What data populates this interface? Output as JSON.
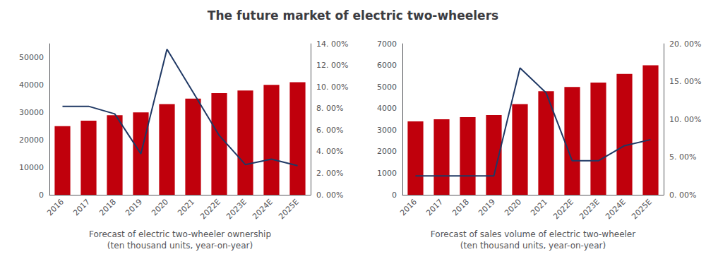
{
  "title": "The future market of electric two-wheelers",
  "chart_data": [
    {
      "type": "bar",
      "xlabel": "Forecast of electric two-wheeler ownership\n(ten thousand units, year-on-year)",
      "categories": [
        "2016",
        "2017",
        "2018",
        "2019",
        "2020",
        "2021",
        "2022E",
        "2023E",
        "2024E",
        "2025E"
      ],
      "series": [
        {
          "type": "bar",
          "color": "#C0000C",
          "values": [
            25000,
            27000,
            29000,
            30000,
            33000,
            35000,
            37000,
            38000,
            40000,
            41000
          ]
        },
        {
          "type": "line",
          "axis": "y2",
          "color": "#1F3864",
          "values": [
            0.082,
            0.082,
            0.075,
            0.038,
            0.135,
            0.095,
            0.055,
            0.028,
            0.033,
            0.027
          ]
        }
      ],
      "ylim": [
        0,
        55000
      ],
      "yticks": [
        0,
        10000,
        20000,
        30000,
        40000,
        50000
      ],
      "y2lim": [
        0,
        0.14
      ],
      "y2ticks": [
        {
          "value": 0.0,
          "label": "0. 00%"
        },
        {
          "value": 0.02,
          "label": "2. 00%"
        },
        {
          "value": 0.04,
          "label": "4. 00%"
        },
        {
          "value": 0.06,
          "label": "6. 00%"
        },
        {
          "value": 0.08,
          "label": "8. 00%"
        },
        {
          "value": 0.1,
          "label": "10. 00%"
        },
        {
          "value": 0.12,
          "label": "12. 00%"
        },
        {
          "value": 0.14,
          "label": "14. 00%"
        }
      ],
      "grid": false
    },
    {
      "type": "bar",
      "xlabel": "Forecast of sales volume of electric two-wheeler\n(ten thousand units, year-on-year)",
      "categories": [
        "2016",
        "2017",
        "2018",
        "2019",
        "2020",
        "2021",
        "2022E",
        "2023E",
        "2024E",
        "2025E"
      ],
      "series": [
        {
          "type": "bar",
          "color": "#C0000C",
          "values": [
            3400,
            3500,
            3600,
            3700,
            4200,
            4800,
            5000,
            5200,
            5600,
            6000
          ]
        },
        {
          "type": "line",
          "axis": "y2",
          "color": "#1F3864",
          "values": [
            0.025,
            0.025,
            0.025,
            0.025,
            0.168,
            0.135,
            0.045,
            0.045,
            0.065,
            0.073
          ]
        }
      ],
      "ylim": [
        0,
        7000
      ],
      "yticks": [
        0,
        1000,
        2000,
        3000,
        4000,
        5000,
        6000,
        7000
      ],
      "y2lim": [
        0,
        0.2
      ],
      "y2ticks": [
        {
          "value": 0.0,
          "label": "0. 00%"
        },
        {
          "value": 0.05,
          "label": "5. 00%"
        },
        {
          "value": 0.1,
          "label": "10. 00%"
        },
        {
          "value": 0.15,
          "label": "15. 00%"
        },
        {
          "value": 0.2,
          "label": "20. 00%"
        }
      ],
      "grid": false
    }
  ]
}
